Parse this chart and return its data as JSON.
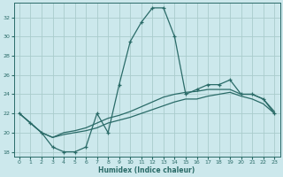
{
  "xlabel": "Humidex (Indice chaleur)",
  "background_color": "#cce8ec",
  "grid_color": "#aacccc",
  "line_color": "#2a6b68",
  "xlim": [
    -0.5,
    23.5
  ],
  "ylim": [
    17.5,
    33.5
  ],
  "xticks": [
    0,
    1,
    2,
    3,
    4,
    5,
    6,
    7,
    8,
    9,
    10,
    11,
    12,
    13,
    14,
    15,
    16,
    17,
    18,
    19,
    20,
    21,
    22,
    23
  ],
  "yticks": [
    18,
    20,
    22,
    24,
    26,
    28,
    30,
    32
  ],
  "line1_x": [
    0,
    1,
    2,
    3,
    4,
    5,
    6,
    7,
    8,
    9,
    10,
    11,
    12,
    13,
    14,
    15,
    16,
    17,
    18,
    19,
    20,
    21,
    22,
    23
  ],
  "line1_y": [
    22,
    21,
    20,
    18.5,
    18,
    18,
    18.5,
    22,
    20,
    25,
    29.5,
    31.5,
    33,
    33,
    30,
    24,
    24.5,
    25,
    25,
    25.5,
    24,
    24,
    23.5,
    22
  ],
  "line2_x": [
    0,
    2,
    3,
    4,
    5,
    6,
    7,
    8,
    9,
    10,
    11,
    12,
    13,
    14,
    15,
    16,
    17,
    18,
    19,
    20,
    21,
    22,
    23
  ],
  "line2_y": [
    22,
    20,
    19.5,
    20,
    20.2,
    20.5,
    21.0,
    21.5,
    21.8,
    22.2,
    22.7,
    23.2,
    23.7,
    24.0,
    24.2,
    24.3,
    24.5,
    24.5,
    24.5,
    24.0,
    24.0,
    23.5,
    22.2
  ],
  "line3_x": [
    0,
    2,
    3,
    4,
    5,
    6,
    7,
    8,
    9,
    10,
    11,
    12,
    13,
    14,
    15,
    16,
    17,
    18,
    19,
    20,
    21,
    22,
    23
  ],
  "line3_y": [
    22,
    20,
    19.5,
    19.8,
    20.0,
    20.2,
    20.5,
    21.0,
    21.3,
    21.6,
    22.0,
    22.4,
    22.8,
    23.2,
    23.5,
    23.5,
    23.8,
    24.0,
    24.2,
    23.8,
    23.5,
    23.0,
    22.0
  ]
}
